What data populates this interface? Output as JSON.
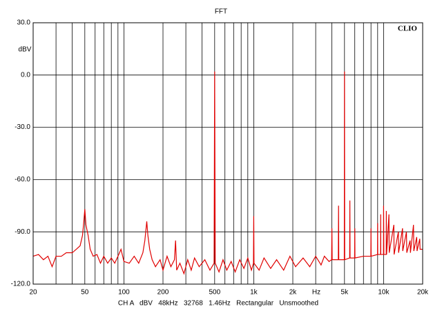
{
  "chart_data": {
    "type": "line",
    "title": "FFT",
    "ylabel": "dBV",
    "xlabel": "Hz",
    "brand": "CLIO",
    "caption": "CH A   dBV   48kHz   32768   1.46Hz   Rectangular   Unsmoothed",
    "xscale": "log",
    "grid": true,
    "xlim": [
      20,
      20000
    ],
    "xticks": [
      20,
      50,
      100,
      200,
      500,
      {
        "value": 1000,
        "label": "1k"
      },
      {
        "value": 2000,
        "label": "2k"
      },
      {
        "value": 5000,
        "label": "5k"
      },
      {
        "value": 10000,
        "label": "10k"
      },
      {
        "value": 20000,
        "label": "20k"
      }
    ],
    "xgrid": [
      30,
      40,
      60,
      70,
      80,
      90,
      300,
      400,
      600,
      700,
      800,
      900,
      3000,
      4000,
      6000,
      7000,
      8000,
      9000
    ],
    "ylim": [
      -120,
      30
    ],
    "yticks": [
      {
        "value": 30,
        "label": "30.0"
      },
      {
        "value": 0,
        "label": "0.0"
      },
      {
        "value": -30,
        "label": "-30.0"
      },
      {
        "value": -60,
        "label": "-60.0"
      },
      {
        "value": -90,
        "label": "-90.0"
      },
      {
        "value": -120,
        "label": "-120.0"
      }
    ],
    "series": [
      {
        "color": "#e00000",
        "x": [
          20,
          22,
          24,
          26,
          28,
          30,
          33,
          36,
          40,
          43,
          46,
          48,
          49,
          50,
          51,
          53,
          55,
          58,
          62,
          66,
          70,
          75,
          80,
          85,
          90,
          95,
          100,
          110,
          120,
          130,
          140,
          145,
          150,
          153,
          158,
          165,
          175,
          190,
          200,
          215,
          230,
          245,
          250,
          255,
          270,
          290,
          310,
          330,
          350,
          380,
          420,
          460,
          495,
          500,
          505,
          540,
          580,
          620,
          670,
          720,
          780,
          840,
          900,
          960,
          995,
          1000,
          1005,
          1100,
          1200,
          1350,
          1500,
          1700,
          1900,
          2100,
          2400,
          2700,
          3000,
          3300,
          3500,
          3800,
          3980,
          4000,
          4020,
          4480,
          4500,
          4520,
          4980,
          5000,
          5020,
          5480,
          5500,
          5520,
          5980,
          6000,
          6020,
          7000,
          7980,
          8000,
          8020,
          8980,
          9000,
          9020,
          9480,
          9500,
          9520,
          9980,
          10000,
          10050,
          10480,
          10500,
          10550,
          11000,
          11050,
          12000,
          12050,
          13000,
          13050,
          14000,
          14050,
          15000,
          15100,
          16000,
          16100,
          17000,
          17100,
          18000,
          18100,
          19000,
          19100,
          20000
        ],
        "values": [
          -104,
          -103,
          -106,
          -104,
          -110,
          -104,
          -104,
          -102,
          -102,
          -100,
          -98,
          -92,
          -85,
          -77,
          -86,
          -92,
          -100,
          -104,
          -103,
          -108,
          -104,
          -108,
          -105,
          -108,
          -104,
          -100,
          -107,
          -108,
          -104,
          -108,
          -102,
          -95,
          -84,
          -92,
          -100,
          -106,
          -110,
          -106,
          -112,
          -104,
          -110,
          -106,
          -95,
          -112,
          -108,
          -114,
          -106,
          -112,
          -105,
          -110,
          -106,
          -112,
          -108,
          2,
          -108,
          -113,
          -106,
          -112,
          -107,
          -113,
          -106,
          -111,
          -105,
          -112,
          -108,
          -81,
          -108,
          -112,
          -105,
          -111,
          -106,
          -112,
          -104,
          -110,
          -105,
          -110,
          -104,
          -109,
          -104,
          -107,
          -106,
          -88,
          -106,
          -106,
          -75,
          -106,
          -106,
          2,
          -106,
          -105,
          -72,
          -105,
          -105,
          -88,
          -105,
          -104,
          -104,
          -88,
          -104,
          -103,
          -85,
          -103,
          -103,
          -80,
          -103,
          -103,
          -75,
          -103,
          -103,
          -78,
          -103,
          -80,
          -102,
          -86,
          -103,
          -90,
          -102,
          -88,
          -101,
          -90,
          -102,
          -95,
          -102,
          -86,
          -101,
          -93,
          -101,
          -94,
          -100,
          -100
        ]
      }
    ]
  }
}
